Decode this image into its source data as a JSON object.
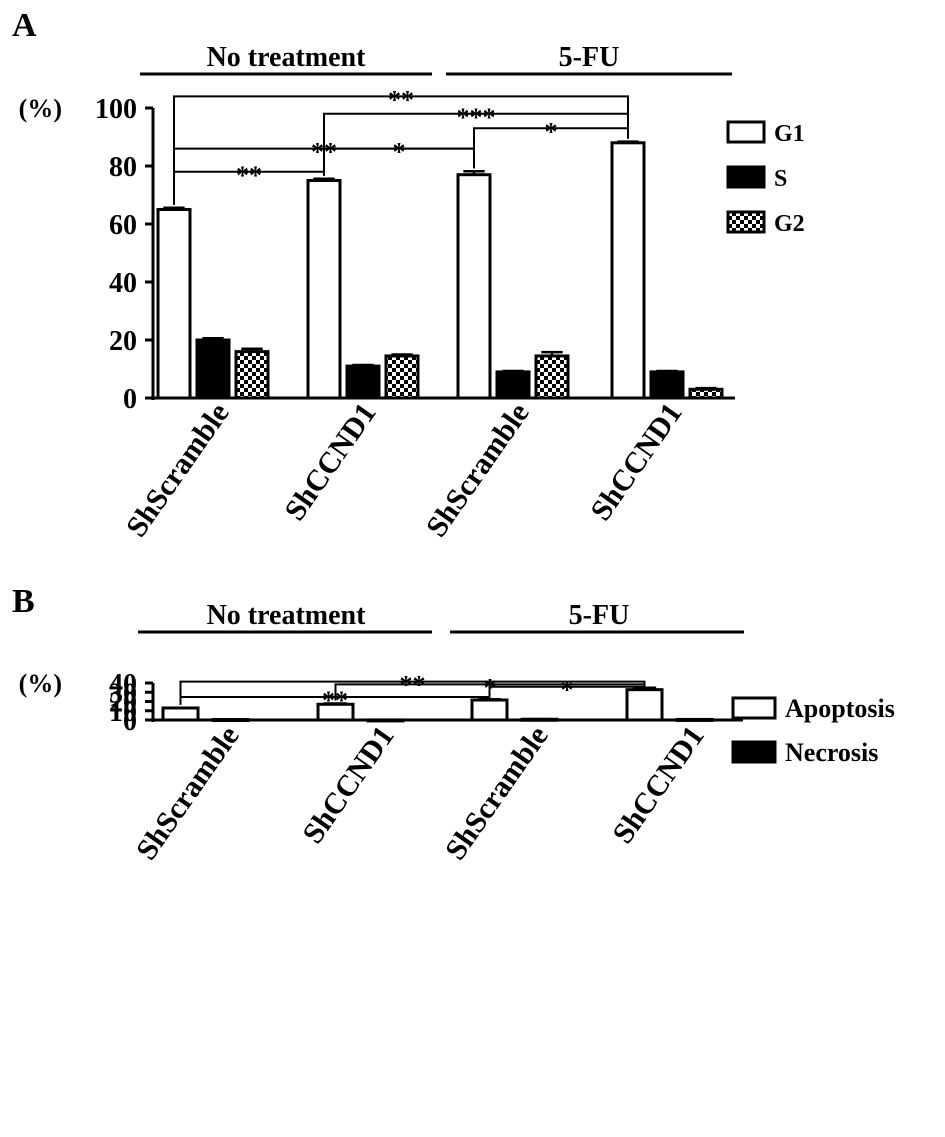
{
  "chart_data": [
    {
      "panel": "A",
      "type": "bar",
      "group_labels": [
        "No treatment",
        "5-FU"
      ],
      "ylabel": "(%)",
      "ylim": [
        0,
        100
      ],
      "yticks": [
        0,
        20,
        40,
        60,
        80,
        100
      ],
      "categories": [
        "ShScramble",
        "ShCCND1",
        "ShScramble",
        "ShCCND1"
      ],
      "series": [
        {
          "name": "G1",
          "values": [
            65,
            75,
            77,
            88
          ],
          "errors": [
            0.6,
            0.6,
            1.2,
            0.4
          ],
          "fill": "white"
        },
        {
          "name": "S",
          "values": [
            20,
            11,
            9,
            9
          ],
          "errors": [
            0.6,
            0.4,
            0.3,
            0.3
          ],
          "fill": "black"
        },
        {
          "name": "G2",
          "values": [
            16,
            14.5,
            14.5,
            3
          ],
          "errors": [
            1.0,
            0.5,
            1.3,
            0.4
          ],
          "fill": "check"
        }
      ],
      "significance": [
        {
          "label": "**",
          "from": 0,
          "to": 3,
          "y": 104
        },
        {
          "label": "***",
          "from": 1,
          "to": 3,
          "y": 98
        },
        {
          "label": "*",
          "from": 2,
          "to": 3,
          "y": 93
        },
        {
          "label": "*",
          "from": 1,
          "to": 2,
          "y": 86
        },
        {
          "label": "**",
          "from": 0,
          "to": 2,
          "y": 86
        },
        {
          "label": "**",
          "from": 0,
          "to": 1,
          "y": 78
        }
      ],
      "legend_position": "right"
    },
    {
      "panel": "B",
      "type": "bar",
      "group_labels": [
        "No treatment",
        "5-FU"
      ],
      "ylabel": "(%)",
      "ylim": [
        0,
        40
      ],
      "yticks": [
        0,
        10,
        20,
        30,
        40
      ],
      "categories": [
        "ShScramble",
        "ShCCND1",
        "ShScramble",
        "ShCCND1"
      ],
      "series": [
        {
          "name": "Apoptosis",
          "values": [
            13,
            17,
            21.6,
            32.8
          ],
          "errors": [
            0.2,
            0.9,
            0.8,
            2.0
          ],
          "fill": "white"
        },
        {
          "name": "Necrosis",
          "values": [
            0.5,
            0.1,
            0.8,
            0.6
          ],
          "errors": [
            0.1,
            0.05,
            0.2,
            0.1
          ],
          "fill": "black"
        }
      ],
      "significance": [
        {
          "label": "**",
          "from": 0,
          "to": 3,
          "y": 41.5
        },
        {
          "label": "*",
          "from": 1,
          "to": 3,
          "y": 38.5
        },
        {
          "label": "*",
          "from": 2,
          "to": 3,
          "y": 36
        },
        {
          "label": "**",
          "from": 0,
          "to": 2,
          "y": 24.8
        }
      ],
      "legend_position": "right"
    }
  ]
}
